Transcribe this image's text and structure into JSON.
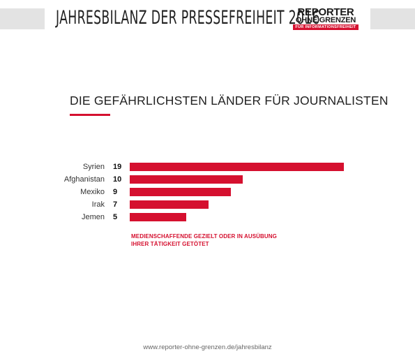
{
  "header": {
    "title": "JAHRESBILANZ DER PRESSEFREIHEIT 2016",
    "logo": {
      "line1": "REPORTER",
      "line2": "OHNE GRENZEN",
      "line3": "FÜR INFORMATIONSFREIHEIT"
    }
  },
  "colors": {
    "accent": "#d5102f",
    "header_bars": "#e3e3e3"
  },
  "chart_data": {
    "type": "bar",
    "orientation": "horizontal",
    "title": "DIE GEFÄHRLICHSTEN LÄNDER FÜR JOURNALISTEN",
    "categories": [
      "Syrien",
      "Afghanistan",
      "Mexiko",
      "Irak",
      "Jemen"
    ],
    "values": [
      19,
      10,
      9,
      7,
      5
    ],
    "annotation": "MEDIENSCHAFFENDE GEZIELT ODER IN AUSÜBUNG\nIHRER TÄTIGKEIT GETÖTET",
    "xlim": [
      0,
      19
    ],
    "grid": false,
    "bar_color": "#d5102f"
  },
  "footer": {
    "url": "www.reporter-ohne-grenzen.de/jahresbilanz"
  }
}
